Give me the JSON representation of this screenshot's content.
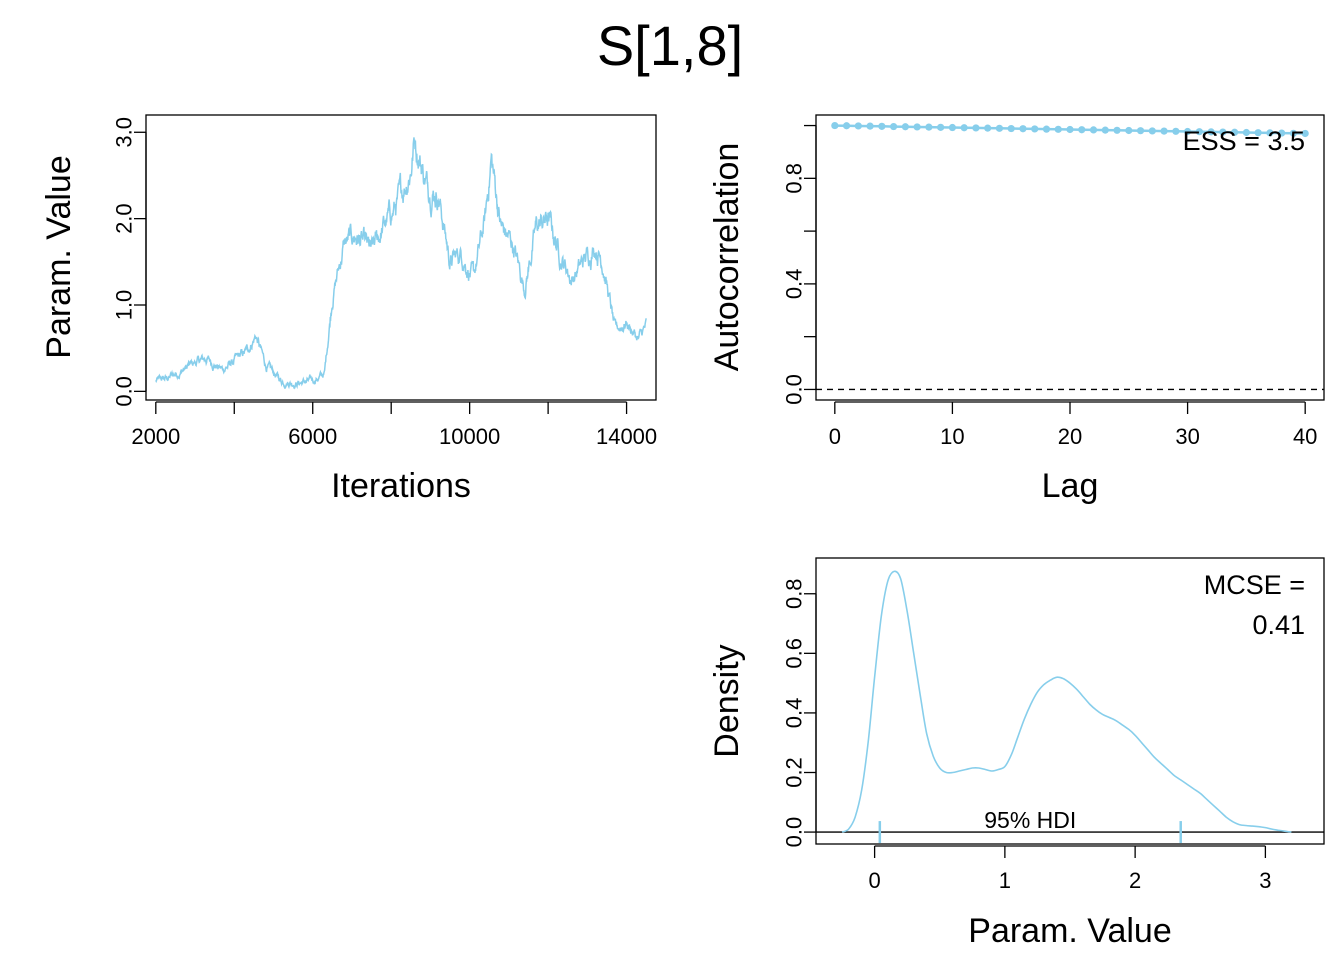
{
  "title": "S[1,8]",
  "colors": {
    "series": "#87CEEB",
    "axis": "#000000",
    "background": "#ffffff"
  },
  "chart_data": [
    {
      "id": "trace",
      "type": "line",
      "title": "",
      "xlabel": "Iterations",
      "ylabel": "Param. Value",
      "xlim": [
        1750,
        14750
      ],
      "ylim": [
        -0.1,
        3.2
      ],
      "xticks": [
        2000,
        6000,
        10000,
        14000
      ],
      "xticks_minor": [
        4000,
        8000,
        12000
      ],
      "yticks": [
        0.0,
        1.0,
        2.0,
        3.0
      ],
      "ytick_labels": [
        "0.0",
        "1.0",
        "2.0",
        "3.0"
      ],
      "x_range": [
        2000,
        14500
      ],
      "keypoints": [
        [
          2000,
          0.12
        ],
        [
          2300,
          0.15
        ],
        [
          2700,
          0.25
        ],
        [
          3000,
          0.33
        ],
        [
          3300,
          0.38
        ],
        [
          3700,
          0.25
        ],
        [
          4000,
          0.35
        ],
        [
          4300,
          0.45
        ],
        [
          4550,
          0.65
        ],
        [
          4800,
          0.3
        ],
        [
          5200,
          0.12
        ],
        [
          5600,
          0.1
        ],
        [
          6000,
          0.12
        ],
        [
          6300,
          0.2
        ],
        [
          6500,
          1.1
        ],
        [
          6800,
          1.7
        ],
        [
          7100,
          1.8
        ],
        [
          7500,
          1.6
        ],
        [
          7800,
          1.9
        ],
        [
          8200,
          2.2
        ],
        [
          8500,
          2.6
        ],
        [
          8600,
          2.95
        ],
        [
          8900,
          2.4
        ],
        [
          9200,
          2.3
        ],
        [
          9500,
          1.5
        ],
        [
          9800,
          1.6
        ],
        [
          10100,
          1.3
        ],
        [
          10400,
          2.0
        ],
        [
          10550,
          2.7
        ],
        [
          10800,
          1.9
        ],
        [
          11100,
          1.7
        ],
        [
          11400,
          1.2
        ],
        [
          11700,
          1.9
        ],
        [
          12000,
          2.0
        ],
        [
          12300,
          1.6
        ],
        [
          12600,
          1.3
        ],
        [
          12900,
          1.5
        ],
        [
          13200,
          1.7
        ],
        [
          13400,
          1.5
        ],
        [
          13700,
          0.7
        ],
        [
          14000,
          0.8
        ],
        [
          14300,
          0.6
        ],
        [
          14500,
          0.75
        ]
      ]
    },
    {
      "id": "autocorrelation",
      "type": "line",
      "title": "",
      "xlabel": "Lag",
      "ylabel": "Autocorrelation",
      "xlim": [
        -1.6,
        41.6
      ],
      "ylim": [
        -0.04,
        1.04
      ],
      "xticks": [
        0,
        10,
        20,
        30,
        40
      ],
      "yticks": [
        0.0,
        0.4,
        0.8
      ],
      "ytick_labels": [
        "0.0",
        "0.4",
        "0.8"
      ],
      "yticks_minor": [
        0.2,
        0.6,
        1.0
      ],
      "lags": [
        0,
        1,
        2,
        3,
        4,
        5,
        6,
        7,
        8,
        9,
        10,
        11,
        12,
        13,
        14,
        15,
        16,
        17,
        18,
        19,
        20,
        21,
        22,
        23,
        24,
        25,
        26,
        27,
        28,
        29,
        30,
        31,
        32,
        33,
        34,
        35,
        36,
        37,
        38,
        39,
        40
      ],
      "values": [
        1.0,
        0.9993,
        0.9985,
        0.9978,
        0.997,
        0.9962,
        0.9955,
        0.9947,
        0.994,
        0.9932,
        0.9925,
        0.9917,
        0.991,
        0.9902,
        0.9895,
        0.9887,
        0.988,
        0.9872,
        0.9864,
        0.9857,
        0.985,
        0.9842,
        0.9835,
        0.9827,
        0.982,
        0.9812,
        0.9805,
        0.9797,
        0.979,
        0.9782,
        0.9775,
        0.9767,
        0.976,
        0.9752,
        0.9745,
        0.9737,
        0.973,
        0.9722,
        0.9715,
        0.9707,
        0.97
      ],
      "reference_line": 0.0,
      "annotation": "ESS = 3.5"
    },
    {
      "id": "density",
      "type": "line",
      "title": "",
      "xlabel": "Param. Value",
      "ylabel": "Density",
      "xlim": [
        -0.45,
        3.45
      ],
      "ylim": [
        -0.04,
        0.92
      ],
      "xticks": [
        0,
        1,
        2,
        3
      ],
      "yticks": [
        0.0,
        0.2,
        0.4,
        0.6,
        0.8
      ],
      "ytick_labels": [
        "0.0",
        "0.2",
        "0.4",
        "0.6",
        "0.8"
      ],
      "x": [
        -0.25,
        -0.2,
        -0.15,
        -0.1,
        -0.05,
        0.0,
        0.05,
        0.1,
        0.15,
        0.2,
        0.25,
        0.3,
        0.35,
        0.4,
        0.45,
        0.5,
        0.55,
        0.6,
        0.65,
        0.7,
        0.75,
        0.8,
        0.85,
        0.9,
        0.95,
        1.0,
        1.05,
        1.1,
        1.15,
        1.2,
        1.25,
        1.3,
        1.35,
        1.4,
        1.45,
        1.5,
        1.55,
        1.6,
        1.65,
        1.7,
        1.75,
        1.8,
        1.85,
        1.9,
        1.95,
        2.0,
        2.05,
        2.1,
        2.15,
        2.2,
        2.25,
        2.3,
        2.35,
        2.4,
        2.45,
        2.5,
        2.55,
        2.6,
        2.65,
        2.7,
        2.75,
        2.8,
        2.85,
        2.9,
        2.95,
        3.0,
        3.05,
        3.1,
        3.15,
        3.2
      ],
      "values": [
        0.0,
        0.01,
        0.05,
        0.14,
        0.3,
        0.52,
        0.72,
        0.84,
        0.875,
        0.85,
        0.74,
        0.6,
        0.46,
        0.33,
        0.255,
        0.215,
        0.2,
        0.2,
        0.205,
        0.21,
        0.215,
        0.215,
        0.21,
        0.205,
        0.21,
        0.22,
        0.26,
        0.32,
        0.38,
        0.43,
        0.47,
        0.495,
        0.51,
        0.52,
        0.515,
        0.5,
        0.48,
        0.455,
        0.43,
        0.41,
        0.395,
        0.385,
        0.375,
        0.36,
        0.345,
        0.325,
        0.3,
        0.275,
        0.25,
        0.23,
        0.21,
        0.19,
        0.175,
        0.16,
        0.145,
        0.13,
        0.11,
        0.09,
        0.07,
        0.05,
        0.035,
        0.025,
        0.022,
        0.02,
        0.018,
        0.015,
        0.01,
        0.006,
        0.003,
        0.0
      ],
      "hdi": [
        0.04,
        2.35
      ],
      "hdi_label": "95% HDI",
      "annotation_line1": "MCSE =",
      "annotation_line2": "0.41"
    }
  ]
}
